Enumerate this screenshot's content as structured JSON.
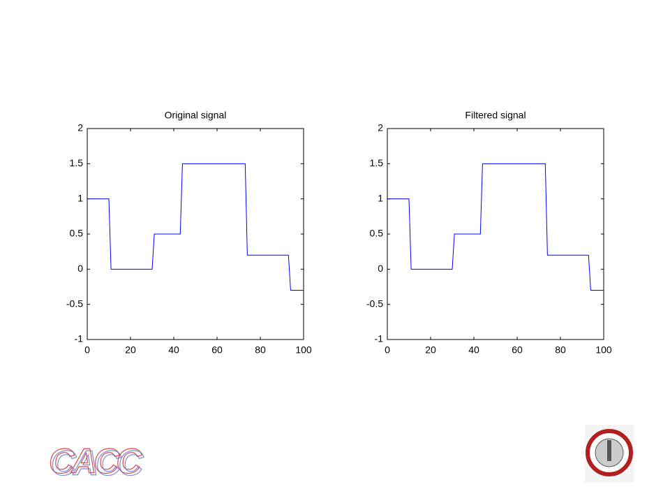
{
  "chart_data": [
    {
      "type": "line",
      "title": "Original signal",
      "x": [
        0,
        10,
        11,
        30,
        31,
        43,
        44,
        73,
        74,
        93,
        94,
        100
      ],
      "values": [
        1,
        1,
        0,
        0,
        0.5,
        0.5,
        1.5,
        1.5,
        0.2,
        0.2,
        -0.3,
        -0.3
      ],
      "color": "#0000ff",
      "xlim": [
        0,
        100
      ],
      "xticks": [
        0,
        20,
        40,
        60,
        80,
        100
      ],
      "ylim": [
        -1,
        2
      ],
      "yticks": [
        -1,
        -0.5,
        0,
        0.5,
        1,
        1.5,
        2
      ]
    },
    {
      "type": "line",
      "title": "Filtered signal",
      "x": [
        0,
        10,
        11,
        30,
        31,
        43,
        44,
        73,
        74,
        93,
        94,
        100
      ],
      "values": [
        1,
        1,
        0,
        0,
        0.5,
        0.5,
        1.5,
        1.5,
        0.2,
        0.2,
        -0.3,
        -0.3
      ],
      "color": "#0000ff",
      "xlim": [
        0,
        100
      ],
      "xticks": [
        0,
        20,
        40,
        60,
        80,
        100
      ],
      "ylim": [
        -1,
        2
      ],
      "yticks": [
        -1,
        -0.5,
        0,
        0.5,
        1,
        1.5,
        2
      ]
    }
  ],
  "logo": {
    "text": "CACC"
  }
}
